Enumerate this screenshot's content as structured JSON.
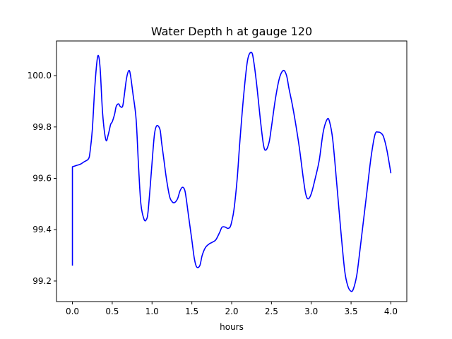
{
  "chart_data": {
    "type": "line",
    "title": "Water Depth h at gauge 120",
    "xlabel": "hours",
    "ylabel": "",
    "xlim": [
      -0.2,
      4.2
    ],
    "ylim": [
      99.12,
      100.135
    ],
    "xticks": [
      0.0,
      0.5,
      1.0,
      1.5,
      2.0,
      2.5,
      3.0,
      3.5,
      4.0
    ],
    "xtick_labels": [
      "0.0",
      "0.5",
      "1.0",
      "1.5",
      "2.0",
      "2.5",
      "3.0",
      "3.5",
      "4.0"
    ],
    "yticks": [
      99.2,
      99.4,
      99.6,
      99.8,
      100.0
    ],
    "ytick_labels": [
      "99.2",
      "99.4",
      "99.6",
      "99.8",
      "100.0"
    ],
    "grid": false,
    "series": [
      {
        "color": "#0000ff",
        "x": [
          0.0,
          0.0,
          0.05,
          0.1,
          0.15,
          0.2,
          0.22,
          0.25,
          0.28,
          0.31,
          0.33,
          0.35,
          0.38,
          0.42,
          0.45,
          0.48,
          0.5,
          0.53,
          0.55,
          0.58,
          0.6,
          0.63,
          0.65,
          0.68,
          0.71,
          0.73,
          0.76,
          0.8,
          0.83,
          0.86,
          0.9,
          0.93,
          0.95,
          0.98,
          1.0,
          1.03,
          1.06,
          1.1,
          1.12,
          1.15,
          1.18,
          1.22,
          1.25,
          1.28,
          1.32,
          1.35,
          1.38,
          1.41,
          1.43,
          1.46,
          1.5,
          1.53,
          1.56,
          1.6,
          1.63,
          1.67,
          1.72,
          1.75,
          1.8,
          1.85,
          1.88,
          1.92,
          1.95,
          1.98,
          2.0,
          2.03,
          2.07,
          2.1,
          2.15,
          2.2,
          2.25,
          2.28,
          2.32,
          2.36,
          2.4,
          2.43,
          2.47,
          2.5,
          2.55,
          2.6,
          2.65,
          2.69,
          2.72,
          2.76,
          2.8,
          2.85,
          2.9,
          2.93,
          2.96,
          3.0,
          3.05,
          3.1,
          3.15,
          3.2,
          3.23,
          3.27,
          3.32,
          3.37,
          3.42,
          3.46,
          3.5,
          3.53,
          3.57,
          3.6,
          3.65,
          3.7,
          3.75,
          3.8,
          3.84,
          3.88,
          3.91,
          3.95,
          4.0
        ],
        "y": [
          99.26,
          99.645,
          99.65,
          99.655,
          99.665,
          99.675,
          99.7,
          99.79,
          99.95,
          100.06,
          100.075,
          100.02,
          99.85,
          99.75,
          99.77,
          99.81,
          99.82,
          99.85,
          99.88,
          99.89,
          99.88,
          99.88,
          99.92,
          99.99,
          100.02,
          100.0,
          99.93,
          99.83,
          99.65,
          99.5,
          99.44,
          99.44,
          99.47,
          99.58,
          99.66,
          99.77,
          99.805,
          99.79,
          99.74,
          99.67,
          99.6,
          99.53,
          99.51,
          99.505,
          99.52,
          99.55,
          99.565,
          99.555,
          99.52,
          99.45,
          99.36,
          99.29,
          99.255,
          99.26,
          99.3,
          99.33,
          99.345,
          99.35,
          99.36,
          99.39,
          99.41,
          99.41,
          99.405,
          99.41,
          99.43,
          99.48,
          99.6,
          99.73,
          99.92,
          100.06,
          100.09,
          100.05,
          99.95,
          99.83,
          99.73,
          99.71,
          99.74,
          99.8,
          99.91,
          99.99,
          100.02,
          100.0,
          99.95,
          99.89,
          99.82,
          99.72,
          99.6,
          99.54,
          99.52,
          99.54,
          99.6,
          99.67,
          99.78,
          99.83,
          99.82,
          99.75,
          99.58,
          99.4,
          99.24,
          99.18,
          99.16,
          99.17,
          99.22,
          99.29,
          99.42,
          99.55,
          99.68,
          99.77,
          99.78,
          99.775,
          99.76,
          99.71,
          99.62
        ]
      }
    ]
  }
}
